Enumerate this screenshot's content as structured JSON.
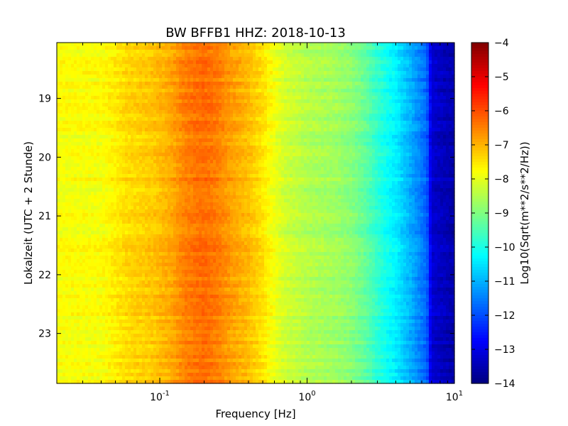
{
  "chart_data": {
    "type": "heatmap",
    "title": "BW BFFB1 HHZ: 2018-10-13",
    "xlabel": "Frequency [Hz]",
    "ylabel": "Lokalzeit (UTC + 2 Stunde)",
    "x_scale": "log",
    "xlim": [
      0.02,
      10
    ],
    "ylim": [
      23.85,
      18.05
    ],
    "x_ticks": [
      {
        "value": 0.1,
        "base": "10",
        "exp": "-1"
      },
      {
        "value": 1,
        "base": "10",
        "exp": "0"
      },
      {
        "value": 10,
        "base": "10",
        "exp": "1"
      }
    ],
    "y_ticks": [
      19,
      20,
      21,
      22,
      23
    ],
    "colorbar": {
      "label": "Log10(Sqrt(m**2/s**2/Hz))",
      "range": [
        -14,
        -4
      ],
      "ticks": [
        "-4",
        "-5",
        "-6",
        "-7",
        "-8",
        "-9",
        "-10",
        "-11",
        "-12",
        "-13",
        "-14"
      ],
      "colormap": "jet"
    },
    "spectrum_profile": {
      "frequency_hz": [
        0.02,
        0.04,
        0.06,
        0.09,
        0.12,
        0.15,
        0.2,
        0.25,
        0.3,
        0.4,
        0.5,
        0.6,
        0.7,
        0.8,
        1.0,
        1.3,
        1.6,
        2.0,
        2.5,
        3.0,
        4.0,
        5.0,
        6.5,
        7.0,
        10.0
      ],
      "log_psd": [
        -7.8,
        -7.8,
        -7.4,
        -7.2,
        -6.9,
        -6.5,
        -6.3,
        -6.5,
        -6.8,
        -7.1,
        -7.5,
        -7.9,
        -8.2,
        -8.3,
        -8.5,
        -8.6,
        -8.7,
        -8.9,
        -9.3,
        -9.8,
        -10.4,
        -11.0,
        -11.8,
        -13.2,
        -13.6
      ]
    },
    "grid": false
  }
}
